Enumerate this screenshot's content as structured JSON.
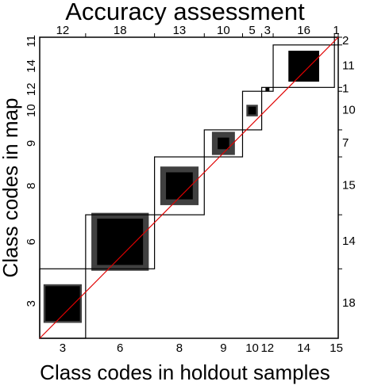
{
  "chart_data": {
    "type": "mosaic",
    "title": "Accuracy assessment",
    "xlabel": "Class codes in holdout samples",
    "ylabel": "Class codes in map",
    "holdout_codes": [
      3,
      6,
      8,
      9,
      10,
      12,
      14,
      15
    ],
    "map_codes": [
      3,
      6,
      8,
      9,
      10,
      12,
      14,
      11
    ],
    "holdout_counts": [
      12,
      18,
      13,
      10,
      5,
      3,
      16,
      1
    ],
    "map_counts": [
      18,
      14,
      15,
      7,
      10,
      1,
      11,
      2
    ],
    "inner_gray": [
      10,
      15,
      10,
      6,
      3,
      1,
      8,
      0
    ],
    "inner_black": [
      9,
      12,
      7,
      3,
      2,
      1,
      8,
      0
    ],
    "gray_color": "#404040",
    "black_color": "#000000",
    "diagonal_color": "#e00000"
  }
}
